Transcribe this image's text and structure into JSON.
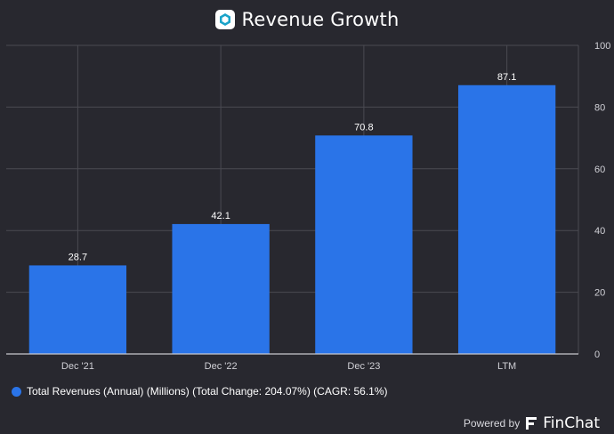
{
  "title": "Revenue Growth",
  "footer": {
    "powered_by": "Powered by",
    "brand": "FinChat"
  },
  "colors": {
    "background": "#28282f",
    "bar": "#2a74e8",
    "grid": "#4a4a52",
    "axis": "#d0d0d6"
  },
  "chart_data": {
    "type": "bar",
    "title": "Revenue Growth",
    "categories": [
      "Dec '21",
      "Dec '22",
      "Dec '23",
      "LTM"
    ],
    "series": [
      {
        "name": "Total Revenues (Annual) (Millions) (Total Change: 204.07%) (CAGR: 56.1%)",
        "values": [
          28.7,
          42.1,
          70.8,
          87.1
        ]
      }
    ],
    "value_labels": [
      "28.7",
      "42.1",
      "70.8",
      "87.1"
    ],
    "ylim": [
      0,
      100
    ],
    "yticks": [
      0,
      20,
      40,
      60,
      80,
      100
    ],
    "y_axis_side": "right",
    "grid": true,
    "legend_position": "bottom-left",
    "xlabel": "",
    "ylabel": ""
  }
}
